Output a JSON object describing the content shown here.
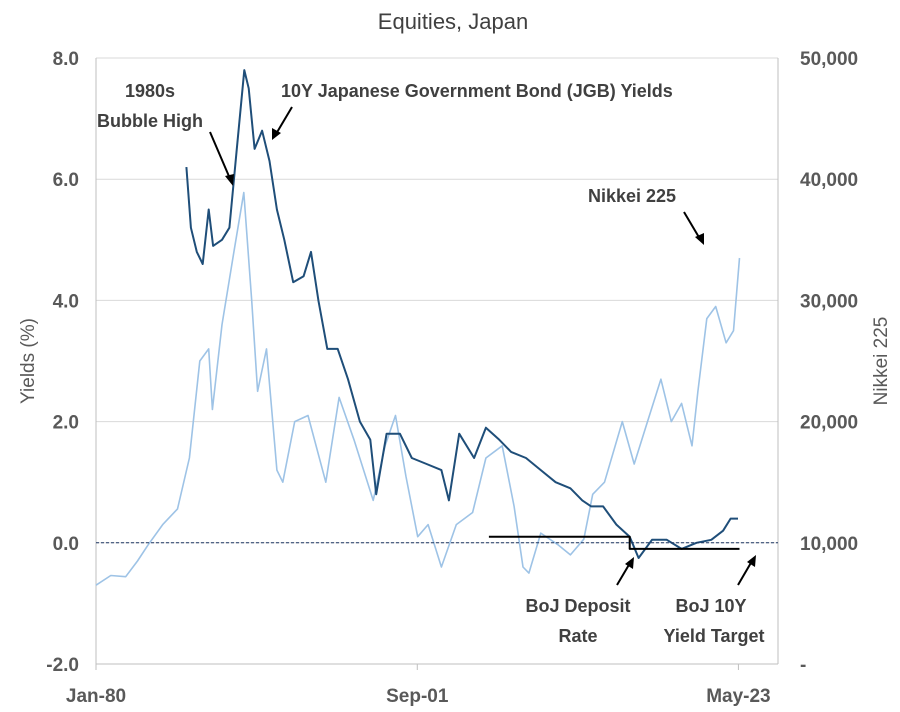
{
  "chart_data": {
    "type": "line",
    "title": "Equities, Japan",
    "ylabel": "Yields  (%)",
    "y2label": "Nikkei  225",
    "ylim": [
      -2,
      8
    ],
    "y2lim": [
      0,
      50000
    ],
    "yticks": [
      "-2.0",
      "0.0",
      "2.0",
      "4.0",
      "6.0",
      "8.0"
    ],
    "y2ticks": [
      "-",
      "10,000",
      "20,000",
      "30,000",
      "40,000",
      "50,000"
    ],
    "xticks": [
      "Jan-80",
      "Sep-01",
      "May-23"
    ],
    "xlim": [
      1980.0,
      2026.0
    ],
    "xtick_values": [
      1980.0,
      2001.67,
      2023.33
    ],
    "grid": "horizontal",
    "zero_line": 0,
    "colors": {
      "nikkei": "#9ec3e6",
      "jgb": "#1f4e79",
      "boj_deposit": "#000000",
      "boj_target": "#000000",
      "axis_text": "#595959",
      "grid": "#d9d9d9",
      "zero_line": "#1f3864"
    },
    "series": [
      {
        "name": "Nikkei 225",
        "axis": "right",
        "x": [
          1980.0,
          1981.0,
          1982.0,
          1982.8,
          1983.5,
          1984.5,
          1985.5,
          1986.3,
          1987.0,
          1987.6,
          1987.85,
          1988.5,
          1989.3,
          1989.97,
          1990.5,
          1990.9,
          1991.5,
          1992.2,
          1992.6,
          1993.4,
          1994.3,
          1995.5,
          1996.4,
          1997.4,
          1998.7,
          1999.5,
          2000.2,
          2000.9,
          2001.7,
          2002.4,
          2003.3,
          2004.3,
          2005.4,
          2006.3,
          2007.4,
          2008.2,
          2008.8,
          2009.2,
          2010.0,
          2011.2,
          2012.0,
          2012.9,
          2013.5,
          2014.3,
          2015.5,
          2016.3,
          2017.2,
          2018.1,
          2018.8,
          2019.5,
          2020.2,
          2020.6,
          2021.2,
          2021.8,
          2022.5,
          2023.0,
          2023.4
        ],
        "y": [
          6500,
          7300,
          7200,
          8500,
          9800,
          11500,
          12800,
          17000,
          25000,
          26000,
          21000,
          28000,
          34000,
          38900,
          30000,
          22500,
          26000,
          16000,
          15000,
          20000,
          20500,
          15000,
          22000,
          18500,
          13500,
          18000,
          20500,
          15500,
          10500,
          11500,
          8000,
          11500,
          12500,
          17000,
          18000,
          13000,
          8000,
          7500,
          10800,
          9800,
          9000,
          10300,
          14000,
          15000,
          20000,
          16500,
          20000,
          23500,
          20000,
          21500,
          18000,
          22500,
          28500,
          29500,
          26500,
          27500,
          33500
        ]
      },
      {
        "name": "10Y Japanese Government Bond (JGB) Yields",
        "axis": "left",
        "x": [
          1986.1,
          1986.4,
          1986.8,
          1987.2,
          1987.6,
          1987.9,
          1988.5,
          1989.0,
          1989.5,
          1990.0,
          1990.3,
          1990.7,
          1991.2,
          1991.7,
          1992.2,
          1992.7,
          1993.3,
          1994.0,
          1994.5,
          1995.0,
          1995.6,
          1996.3,
          1997.0,
          1997.8,
          1998.5,
          1998.9,
          1999.6,
          2000.5,
          2001.3,
          2002.3,
          2003.3,
          2003.8,
          2004.5,
          2005.5,
          2006.3,
          2007.2,
          2008.0,
          2009.0,
          2010.0,
          2011.0,
          2012.0,
          2012.8,
          2013.4,
          2014.2,
          2015.1,
          2016.0,
          2016.6,
          2017.5,
          2018.5,
          2019.5,
          2020.5,
          2021.5,
          2022.3,
          2022.8,
          2023.3
        ],
        "y": [
          6.2,
          5.2,
          4.8,
          4.6,
          5.5,
          4.9,
          5.0,
          5.2,
          6.5,
          7.8,
          7.5,
          6.5,
          6.8,
          6.3,
          5.5,
          5.0,
          4.3,
          4.4,
          4.8,
          4.0,
          3.2,
          3.2,
          2.7,
          2.0,
          1.7,
          0.8,
          1.8,
          1.8,
          1.4,
          1.3,
          1.2,
          0.7,
          1.8,
          1.4,
          1.9,
          1.7,
          1.5,
          1.4,
          1.2,
          1.0,
          0.9,
          0.7,
          0.6,
          0.6,
          0.3,
          0.1,
          -0.25,
          0.05,
          0.05,
          -0.1,
          0.0,
          0.05,
          0.2,
          0.4,
          0.4
        ]
      },
      {
        "name": "BoJ Deposit Rate",
        "axis": "left",
        "x": [
          1980.0,
          2006.5,
          2006.5,
          2008.9,
          2008.9,
          2016.0,
          2016.0,
          2023.4
        ],
        "y": [
          null,
          null,
          0.1,
          0.1,
          0.1,
          0.1,
          -0.1,
          -0.1
        ]
      },
      {
        "name": "BoJ 10Y Yield Target",
        "axis": "left",
        "x": [],
        "y": []
      }
    ],
    "annotations": [
      {
        "lines": [
          "1980s",
          "Bubble High"
        ]
      },
      {
        "lines": [
          "10Y Japanese Government Bond (JGB) Yields"
        ]
      },
      {
        "lines": [
          "Nikkei  225"
        ]
      },
      {
        "lines": [
          "BoJ Deposit",
          "Rate"
        ]
      },
      {
        "lines": [
          "BoJ 10Y",
          "Yield Target"
        ]
      }
    ]
  }
}
